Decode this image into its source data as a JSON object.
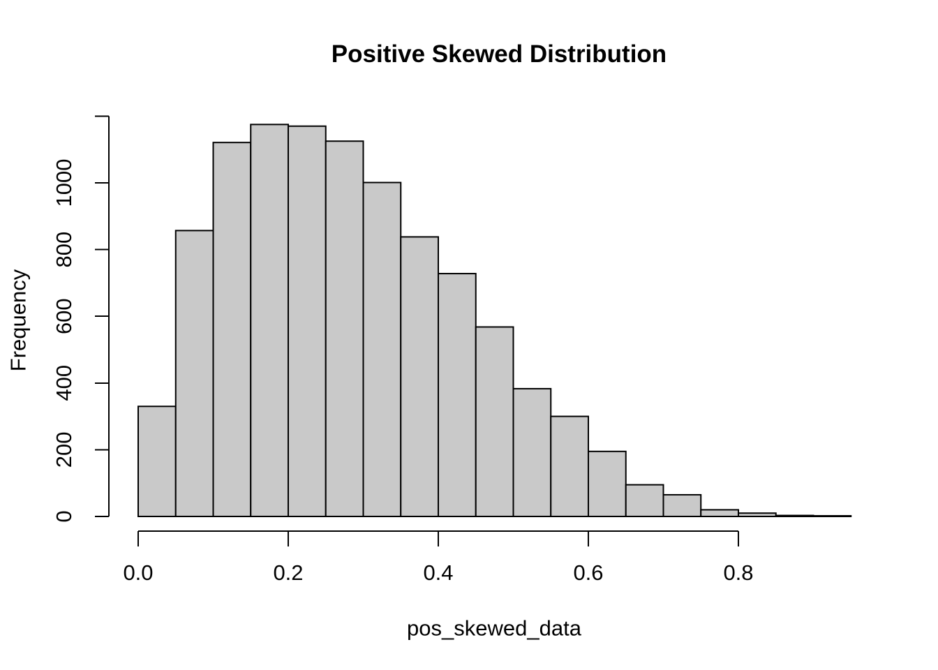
{
  "chart_data": {
    "type": "bar",
    "subtype": "histogram",
    "title": "Positive Skewed Distribution",
    "xlabel": "pos_skewed_data",
    "ylabel": "Frequency",
    "bin_start": 0.0,
    "bin_width": 0.05,
    "bin_edges": [
      0.0,
      0.05,
      0.1,
      0.15,
      0.2,
      0.25,
      0.3,
      0.35,
      0.4,
      0.45,
      0.5,
      0.55,
      0.6,
      0.65,
      0.7,
      0.75,
      0.8,
      0.85,
      0.9,
      0.95
    ],
    "counts": [
      330,
      857,
      1121,
      1175,
      1170,
      1125,
      1001,
      838,
      728,
      568,
      383,
      300,
      195,
      95,
      65,
      20,
      10,
      3,
      2
    ],
    "x_ticks": [
      0.0,
      0.2,
      0.4,
      0.6,
      0.8
    ],
    "x_tick_labels": [
      "0.0",
      "0.2",
      "0.4",
      "0.6",
      "0.8"
    ],
    "y_ticks": [
      0,
      200,
      400,
      600,
      800,
      1000
    ],
    "y_tick_labels": [
      "0",
      "200",
      "400",
      "600",
      "800",
      "1000"
    ],
    "y_axis_extra_unlabeled_tick": 1200,
    "xlim": [
      0,
      0.95
    ],
    "ylim": [
      0,
      1200
    ],
    "grid": false,
    "legend": false,
    "colors": {
      "bar_fill": "#c9c9c9",
      "bar_border": "#000000",
      "axis": "#000000",
      "text": "#000000",
      "background": "#ffffff"
    }
  }
}
